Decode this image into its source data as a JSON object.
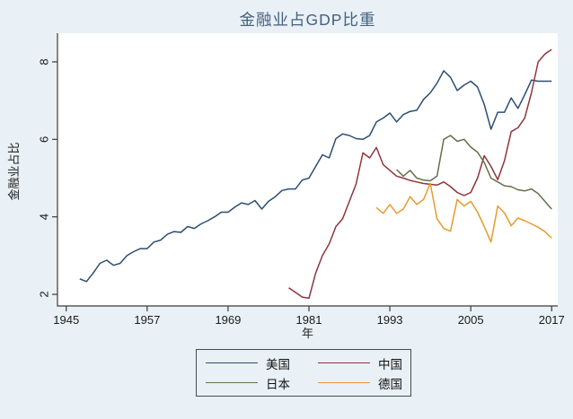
{
  "title": "金融业占GDP比重",
  "axes": {
    "x_title": "年",
    "y_title": "金融业占比"
  },
  "style": {
    "outer_bg": "#e9f1f6",
    "plot_bg": "#ffffff",
    "axis_color": "#3a3a3a",
    "tick_label_color": "#1a1a1a",
    "title_color": "#46607f"
  },
  "chart_data": {
    "type": "line",
    "title": "金融业占GDP比重",
    "xlabel": "年",
    "ylabel": "金融业占比",
    "xlim": [
      1943.7,
      2017.9
    ],
    "ylim": [
      1.7,
      8.74
    ],
    "xticks": [
      1945,
      1957,
      1969,
      1981,
      1993,
      2005,
      2017
    ],
    "yticks": [
      2,
      4,
      6,
      8
    ],
    "grid": false,
    "legend_position": "below",
    "series": [
      {
        "name": "美国",
        "color": "#2c4d73",
        "x": [
          1947,
          1948,
          1949,
          1950,
          1951,
          1952,
          1953,
          1954,
          1955,
          1956,
          1957,
          1958,
          1959,
          1960,
          1961,
          1962,
          1963,
          1964,
          1965,
          1966,
          1967,
          1968,
          1969,
          1970,
          1971,
          1972,
          1973,
          1974,
          1975,
          1976,
          1977,
          1978,
          1979,
          1980,
          1981,
          1982,
          1983,
          1984,
          1985,
          1986,
          1987,
          1988,
          1989,
          1990,
          1991,
          1992,
          1993,
          1994,
          1995,
          1996,
          1997,
          1998,
          1999,
          2000,
          2001,
          2002,
          2003,
          2004,
          2005,
          2006,
          2007,
          2008,
          2009,
          2010,
          2011,
          2012,
          2013,
          2014,
          2015,
          2016,
          2017
        ],
        "y": [
          2.4,
          2.33,
          2.55,
          2.8,
          2.88,
          2.75,
          2.8,
          3.0,
          3.1,
          3.18,
          3.18,
          3.35,
          3.4,
          3.55,
          3.62,
          3.6,
          3.75,
          3.7,
          3.82,
          3.9,
          4.0,
          4.12,
          4.12,
          4.25,
          4.36,
          4.32,
          4.42,
          4.2,
          4.4,
          4.52,
          4.68,
          4.72,
          4.72,
          4.95,
          5.0,
          5.3,
          5.6,
          5.52,
          6.02,
          6.14,
          6.1,
          6.02,
          6.0,
          6.1,
          6.45,
          6.55,
          6.68,
          6.45,
          6.64,
          6.72,
          6.75,
          7.03,
          7.2,
          7.45,
          7.77,
          7.6,
          7.26,
          7.4,
          7.5,
          7.35,
          6.9,
          6.26,
          6.7,
          6.7,
          7.07,
          6.8,
          7.15,
          7.53,
          7.5,
          7.5,
          7.5
        ]
      },
      {
        "name": "中国",
        "color": "#90353b",
        "x": [
          1978,
          1979,
          1980,
          1981,
          1982,
          1983,
          1984,
          1985,
          1986,
          1987,
          1988,
          1989,
          1990,
          1991,
          1992,
          1993,
          1994,
          1995,
          1996,
          1997,
          1998,
          1999,
          2000,
          2001,
          2002,
          2003,
          2004,
          2005,
          2006,
          2007,
          2008,
          2009,
          2010,
          2011,
          2012,
          2013,
          2014,
          2015,
          2016,
          2017
        ],
        "y": [
          2.17,
          2.05,
          1.93,
          1.9,
          2.55,
          3.0,
          3.3,
          3.75,
          3.95,
          4.4,
          4.85,
          5.65,
          5.52,
          5.79,
          5.35,
          5.2,
          5.05,
          5.0,
          4.94,
          4.9,
          4.86,
          4.84,
          4.82,
          4.9,
          4.78,
          4.63,
          4.55,
          4.63,
          5.0,
          5.58,
          5.3,
          4.96,
          5.45,
          6.2,
          6.3,
          6.55,
          7.2,
          8.0,
          8.2,
          8.32
        ]
      },
      {
        "name": "日本",
        "color": "#62704b",
        "x": [
          1994,
          1995,
          1996,
          1997,
          1998,
          1999,
          2000,
          2001,
          2002,
          2003,
          2004,
          2005,
          2006,
          2007,
          2008,
          2009,
          2010,
          2011,
          2012,
          2013,
          2014,
          2015,
          2016,
          2017
        ],
        "y": [
          5.22,
          5.05,
          5.2,
          5.0,
          4.95,
          4.93,
          5.05,
          6.0,
          6.1,
          5.95,
          6.0,
          5.8,
          5.67,
          5.4,
          5.0,
          4.9,
          4.8,
          4.78,
          4.7,
          4.67,
          4.72,
          4.6,
          4.4,
          4.2
        ]
      },
      {
        "name": "德国",
        "color": "#e59b2e",
        "x": [
          1991,
          1992,
          1993,
          1994,
          1995,
          1996,
          1997,
          1998,
          1999,
          2000,
          2001,
          2002,
          2003,
          2004,
          2005,
          2006,
          2007,
          2008,
          2009,
          2010,
          2011,
          2012,
          2013,
          2014,
          2015,
          2016,
          2017
        ],
        "y": [
          4.24,
          4.09,
          4.32,
          4.09,
          4.2,
          4.52,
          4.32,
          4.45,
          4.86,
          3.95,
          3.7,
          3.63,
          4.45,
          4.28,
          4.4,
          4.12,
          3.75,
          3.35,
          4.28,
          4.1,
          3.77,
          3.97,
          3.9,
          3.82,
          3.73,
          3.62,
          3.45
        ]
      }
    ]
  }
}
